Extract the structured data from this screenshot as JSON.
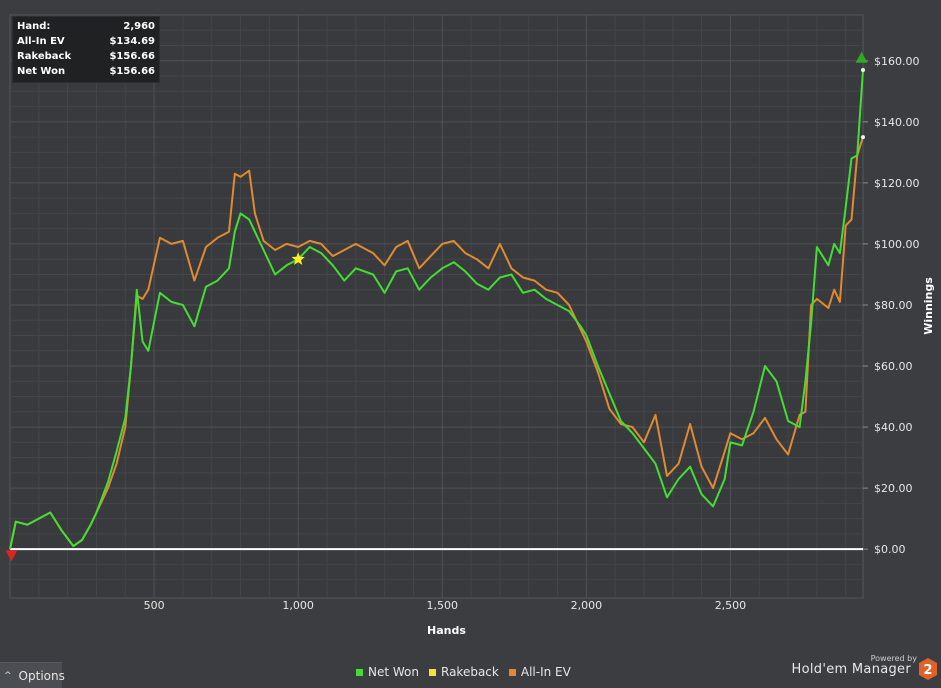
{
  "stats": {
    "rows": [
      {
        "label": "Hand:",
        "value": "2,960"
      },
      {
        "label": "All-In EV",
        "value": "$134.69"
      },
      {
        "label": "Rakeback",
        "value": "$156.66"
      },
      {
        "label": "Net Won",
        "value": "$156.66"
      }
    ]
  },
  "chart_data": {
    "type": "line",
    "xlabel": "Hands",
    "ylabel": "Winnings",
    "xlim": [
      0,
      2960
    ],
    "ylim": [
      -16,
      175
    ],
    "x_ticks": [
      500,
      1000,
      1500,
      2000,
      2500
    ],
    "x_tick_labels": [
      "500",
      "1,000",
      "1,500",
      "2,000",
      "2,500"
    ],
    "y_ticks": [
      0,
      20,
      40,
      60,
      80,
      100,
      120,
      140,
      160
    ],
    "y_tick_labels": [
      "$0.00",
      "$20.00",
      "$40.00",
      "$60.00",
      "$80.00",
      "$100.00",
      "$120.00",
      "$140.00",
      "$160.00"
    ],
    "grid": true,
    "legend_position": "bottom-center",
    "zero_line_color": "#ffffff",
    "series": [
      {
        "name": "Net Won",
        "color": "#44dd33",
        "x": [
          0,
          20,
          60,
          100,
          140,
          180,
          220,
          250,
          280,
          300,
          340,
          370,
          400,
          420,
          440,
          460,
          480,
          520,
          560,
          600,
          640,
          680,
          720,
          760,
          780,
          800,
          830,
          850,
          880,
          920,
          960,
          1000,
          1040,
          1080,
          1120,
          1160,
          1200,
          1260,
          1300,
          1340,
          1380,
          1420,
          1460,
          1500,
          1540,
          1580,
          1620,
          1660,
          1700,
          1740,
          1780,
          1820,
          1860,
          1900,
          1940,
          1980,
          2000,
          2040,
          2080,
          2120,
          2160,
          2200,
          2240,
          2280,
          2320,
          2360,
          2400,
          2440,
          2480,
          2500,
          2540,
          2580,
          2620,
          2660,
          2700,
          2740,
          2760,
          2780,
          2800,
          2840,
          2860,
          2880,
          2900,
          2920,
          2940,
          2960
        ],
        "y": [
          0,
          9,
          8,
          10,
          12,
          6,
          1,
          3,
          8,
          12,
          22,
          32,
          43,
          60,
          85,
          68,
          65,
          84,
          81,
          80,
          73,
          86,
          88,
          92,
          104,
          110,
          108,
          104,
          98,
          90,
          93,
          95,
          99,
          97,
          93,
          88,
          92,
          90,
          84,
          91,
          92,
          85,
          89,
          92,
          94,
          91,
          87,
          85,
          89,
          90,
          84,
          85,
          82,
          80,
          78,
          73,
          70,
          60,
          51,
          42,
          38,
          33,
          28,
          17,
          23,
          27,
          18,
          14,
          23,
          35,
          34,
          45,
          60,
          55,
          42,
          40,
          55,
          74,
          99,
          93,
          100,
          97,
          112,
          128,
          129,
          157
        ]
      },
      {
        "name": "Rakeback",
        "color": "#f2e23a",
        "x": [],
        "y": []
      },
      {
        "name": "All-In EV",
        "color": "#e08a32",
        "x": [
          0,
          20,
          60,
          100,
          140,
          180,
          220,
          250,
          280,
          300,
          340,
          370,
          400,
          420,
          440,
          460,
          480,
          520,
          560,
          600,
          640,
          680,
          720,
          760,
          780,
          800,
          830,
          850,
          880,
          920,
          960,
          1000,
          1040,
          1080,
          1120,
          1160,
          1200,
          1260,
          1300,
          1340,
          1380,
          1420,
          1460,
          1500,
          1540,
          1580,
          1620,
          1660,
          1700,
          1740,
          1780,
          1820,
          1860,
          1900,
          1940,
          1980,
          2000,
          2040,
          2080,
          2120,
          2160,
          2200,
          2240,
          2280,
          2320,
          2360,
          2400,
          2440,
          2480,
          2500,
          2540,
          2580,
          2620,
          2660,
          2700,
          2740,
          2760,
          2780,
          2800,
          2840,
          2860,
          2880,
          2900,
          2920,
          2940,
          2960
        ],
        "y": [
          0,
          9,
          8,
          10,
          12,
          6,
          1,
          3,
          8,
          12,
          20,
          28,
          40,
          60,
          83,
          82,
          85,
          102,
          100,
          101,
          88,
          99,
          102,
          104,
          123,
          122,
          124,
          110,
          101,
          98,
          100,
          99,
          101,
          100,
          96,
          98,
          100,
          97,
          93,
          99,
          101,
          92,
          96,
          100,
          101,
          97,
          95,
          92,
          100,
          92,
          89,
          88,
          85,
          84,
          80,
          72,
          68,
          58,
          46,
          41,
          40,
          35,
          44,
          24,
          28,
          41,
          27,
          20,
          32,
          38,
          36,
          38,
          43,
          36,
          31,
          44,
          45,
          80,
          82,
          79,
          85,
          81,
          106,
          108,
          129,
          135
        ]
      }
    ],
    "markers": [
      {
        "type": "star",
        "color": "#ffee22",
        "x": 1000,
        "y": 95
      },
      {
        "type": "triangle-up",
        "color": "#2faa22",
        "x": 2955,
        "y": 161
      },
      {
        "type": "triangle-down",
        "color": "#dd2222",
        "x": 5,
        "y": -2
      }
    ]
  },
  "legend": [
    {
      "name": "Net Won",
      "color": "#44dd33"
    },
    {
      "name": "Rakeback",
      "color": "#f2e23a"
    },
    {
      "name": "All-In EV",
      "color": "#e08a32"
    }
  ],
  "footer": {
    "options_label": "Options",
    "options_chevron": "^",
    "powered_by": "Powered by",
    "brand": "Hold'em Manager",
    "brand_badge": "2",
    "brand_badge_color": "#e0622a"
  }
}
